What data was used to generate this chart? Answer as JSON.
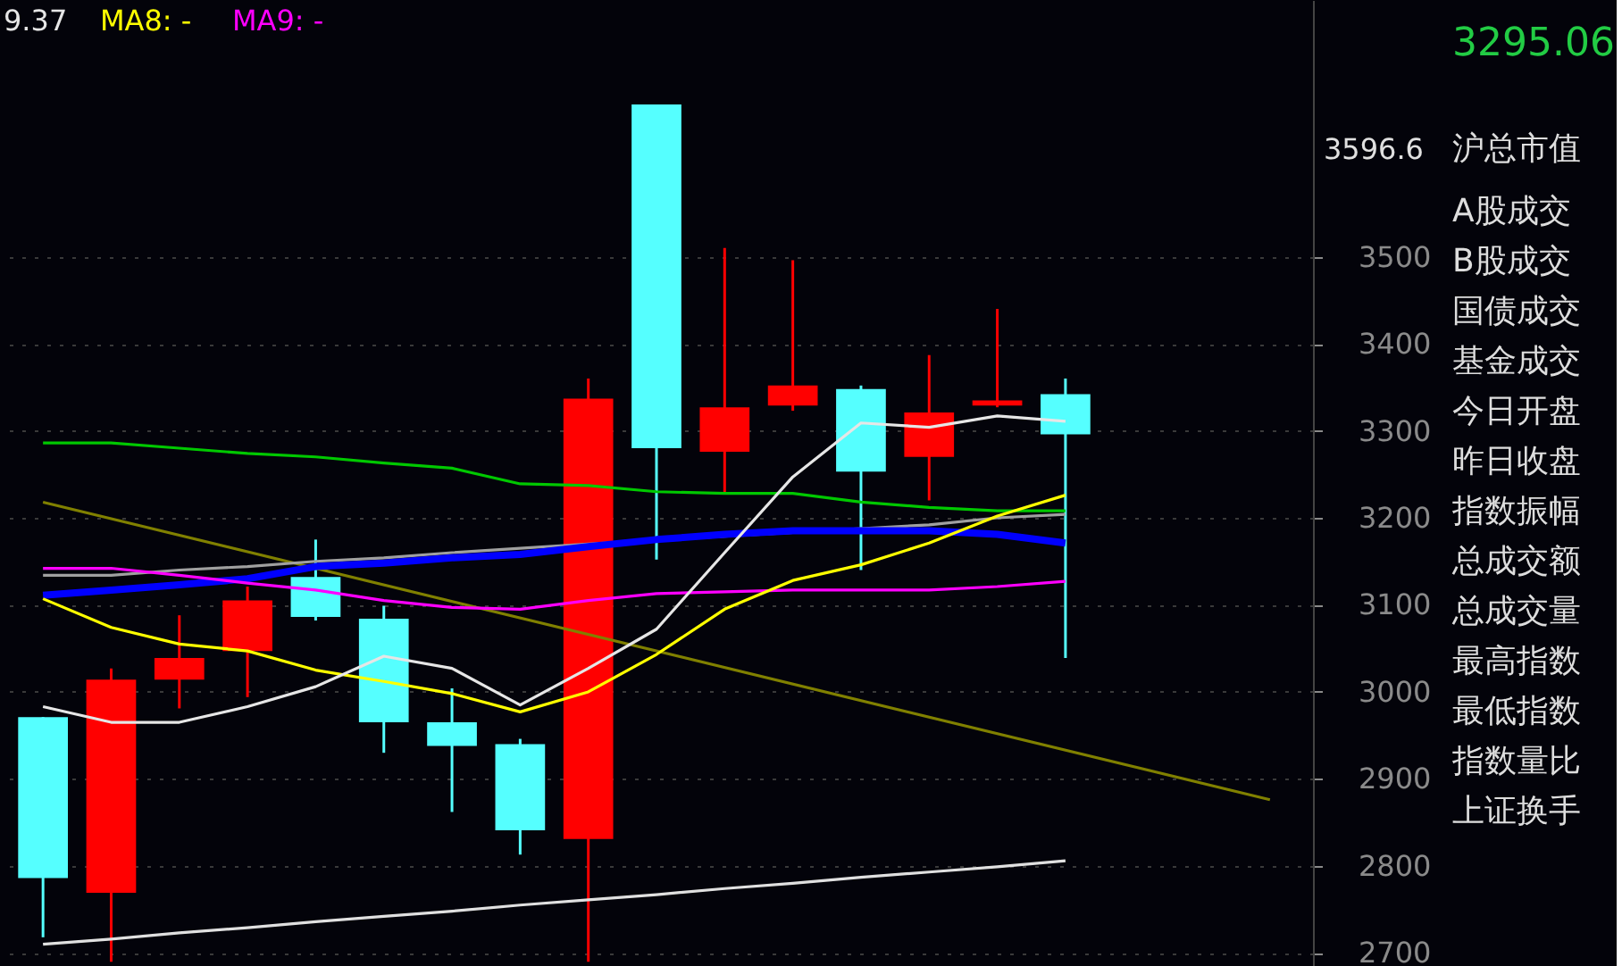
{
  "chart_data": {
    "type": "candlestick",
    "categories": [
      null,
      null,
      null,
      null,
      null,
      null,
      null,
      null,
      null,
      null,
      null,
      null,
      null,
      null,
      null,
      null,
      null,
      null,
      null
    ],
    "ohlc": [
      [
        2971,
        2971,
        2718,
        2786
      ],
      [
        2769,
        3027,
        2690,
        3014
      ],
      [
        3014,
        3088,
        2981,
        3039
      ],
      [
        3047,
        3121,
        2994,
        3105
      ],
      [
        3132,
        3175,
        3082,
        3086
      ],
      [
        3084,
        3099,
        2930,
        2965
      ],
      [
        2965,
        3004,
        2862,
        2938
      ],
      [
        2940,
        2946,
        2813,
        2841
      ],
      [
        2831,
        3360,
        2690,
        3337
      ],
      [
        3675,
        3675,
        3152,
        3280
      ],
      [
        3276,
        3510,
        3228,
        3327
      ],
      [
        3329,
        3496,
        3323,
        3352
      ],
      [
        3348,
        3352,
        3140,
        3253
      ],
      [
        3270,
        3387,
        3220,
        3321
      ],
      [
        3329,
        3440,
        3327,
        3335
      ],
      [
        3342,
        3360,
        3039,
        3296
      ],
      null,
      null,
      null
    ],
    "colors": [
      "#55ffff",
      "#ff0000",
      "#ff0000",
      "#ff0000",
      "#55ffff",
      "#55ffff",
      "#55ffff",
      "#55ffff",
      "#ff0000",
      "#55ffff",
      "#ff0000",
      "#ff0000",
      "#55ffff",
      "#ff0000",
      "#ff0000",
      "#55ffff",
      null,
      null,
      null
    ],
    "series": [
      {
        "type": "line",
        "color": "#808000",
        "values": [
          3218,
          null,
          null,
          null,
          null,
          null,
          null,
          null,
          null,
          null,
          null,
          null,
          null,
          null,
          null,
          null,
          null,
          null,
          2876
        ]
      },
      {
        "type": "line",
        "color": "#e0e0e0",
        "values": [
          2710,
          2716,
          2723,
          2729,
          2736,
          2742,
          2748,
          2755,
          2761,
          2767,
          2774,
          2780,
          2787,
          2793,
          2799,
          2806,
          null,
          null,
          null
        ]
      },
      {
        "type": "line",
        "color": "#00c800",
        "values": [
          3286,
          3286,
          3280,
          3274,
          3270,
          3263,
          3257,
          3239,
          3237,
          3230,
          3228,
          3228,
          3218,
          3212,
          3208,
          3208,
          null,
          null,
          null
        ]
      },
      {
        "type": "line",
        "color": "#a0a0a0",
        "values": [
          3134,
          3134,
          3140,
          3144,
          3150,
          3154,
          3160,
          3165,
          3170,
          null,
          null,
          null,
          null,
          3192,
          3200,
          3204,
          null,
          null,
          null
        ]
      },
      {
        "type": "line",
        "color": "#0000ff",
        "values": [
          3111,
          3117,
          3123,
          3130,
          3144,
          3148,
          3154,
          3158,
          3167,
          3175,
          3181,
          3185,
          3185,
          3185,
          3181,
          3171,
          null,
          null,
          null
        ]
      },
      {
        "type": "line",
        "color": "#ff00ff",
        "values": [
          3142,
          3142,
          3134,
          3125,
          3117,
          3105,
          3097,
          3095,
          3105,
          3113,
          3115,
          3117,
          3117,
          3117,
          3121,
          3127,
          null,
          null,
          null
        ]
      },
      {
        "type": "line",
        "color": "#ffff00",
        "values": [
          3107,
          3074,
          3055,
          3047,
          3025,
          3012,
          2998,
          2977,
          3000,
          3043,
          3095,
          3128,
          3146,
          3171,
          3202,
          3226,
          null,
          null,
          null
        ]
      },
      {
        "type": "line",
        "color": "#e6e6e6",
        "values": [
          2983,
          2965,
          2965,
          2983,
          3006,
          3041,
          3027,
          2985,
          3027,
          3072,
          3160,
          3247,
          3309,
          3304,
          3317,
          3311,
          null,
          null,
          null
        ]
      }
    ],
    "ylim": [
      2685,
      3795
    ],
    "yticks": [
      2700,
      2800,
      2900,
      3000,
      3100,
      3200,
      3300,
      3400,
      3500
    ],
    "grid": "y",
    "tick_labels": "y",
    "line_style": "solid",
    "annotations": [
      "9.37",
      "MA8: -",
      "MA9: -",
      "3596.6",
      "3295.06",
      "沪总市值",
      "A股成交",
      "B股成交",
      "国债成交",
      "基金成交",
      "今日开盘",
      "昨日收盘",
      "指数振幅",
      "总成交额",
      "总成交量",
      "最高指数",
      "最低指数",
      "指数量比",
      "上证换手"
    ]
  }
}
